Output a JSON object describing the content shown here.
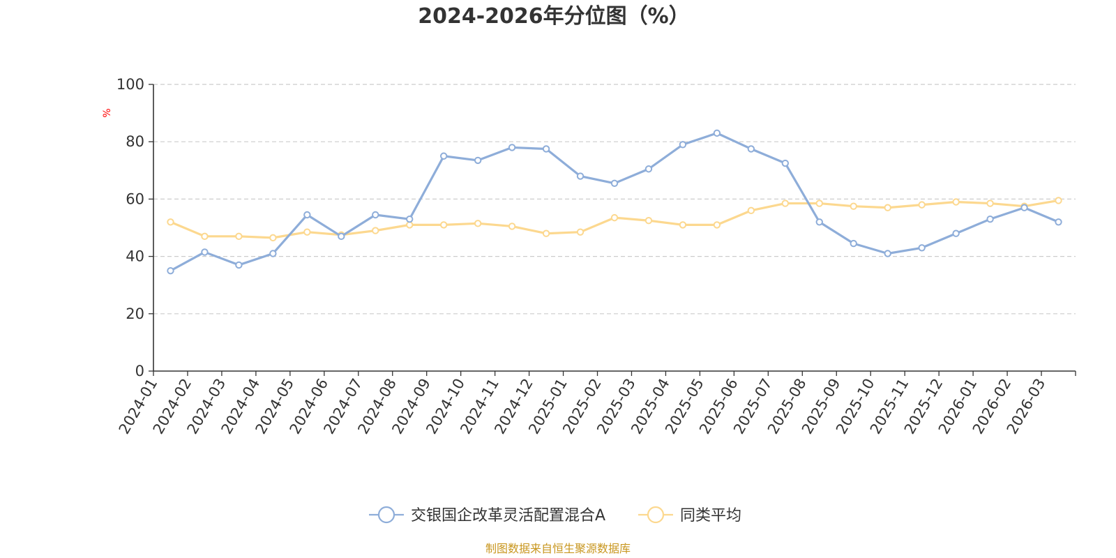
{
  "colors": {
    "series_a": "#8eadd9",
    "series_b": "#fcd88f",
    "axis": "#333333",
    "grid": "#cccccc",
    "unit": "#ff0000",
    "source": "#c8961e",
    "title": "#333333"
  },
  "chart_data": {
    "type": "line",
    "title": "2024-2026年分位图（%）",
    "ylabel": "%",
    "xlabel": "",
    "ylim": [
      0,
      100
    ],
    "yticks": [
      0,
      20,
      40,
      60,
      80,
      100
    ],
    "grid": true,
    "legend_position": "bottom-center",
    "categories": [
      "2024-01",
      "2024-02",
      "2024-03",
      "2024-04",
      "2024-05",
      "2024-06",
      "2024-07",
      "2024-08",
      "2024-09",
      "2024-10",
      "2024-11",
      "2024-12",
      "2025-01",
      "2025-02",
      "2025-03",
      "2025-04",
      "2025-05",
      "2025-06",
      "2025-07",
      "2025-08",
      "2025-09",
      "2025-10",
      "2025-11",
      "2025-12",
      "2026-01",
      "2026-02",
      "2026-03"
    ],
    "series": [
      {
        "name": "交银国企改革灵活配置混合A",
        "color": "#8eadd9",
        "values": [
          35,
          41.5,
          37,
          41,
          54.5,
          47,
          54.5,
          53,
          75,
          73.5,
          78,
          77.5,
          68,
          65.5,
          70.5,
          79,
          83,
          77.5,
          72.5,
          52,
          44.5,
          41,
          43,
          48,
          53,
          57,
          52
        ]
      },
      {
        "name": "同类平均",
        "color": "#fcd88f",
        "values": [
          52,
          47,
          47,
          46.5,
          48.5,
          47.5,
          49,
          51,
          51,
          51.5,
          50.5,
          48,
          48.5,
          53.5,
          52.5,
          51,
          51,
          56,
          58.5,
          58.5,
          57.5,
          57,
          58,
          59,
          58.5,
          57.5,
          59.5
        ]
      }
    ]
  },
  "source_text": "制图数据来自恒生聚源数据库"
}
